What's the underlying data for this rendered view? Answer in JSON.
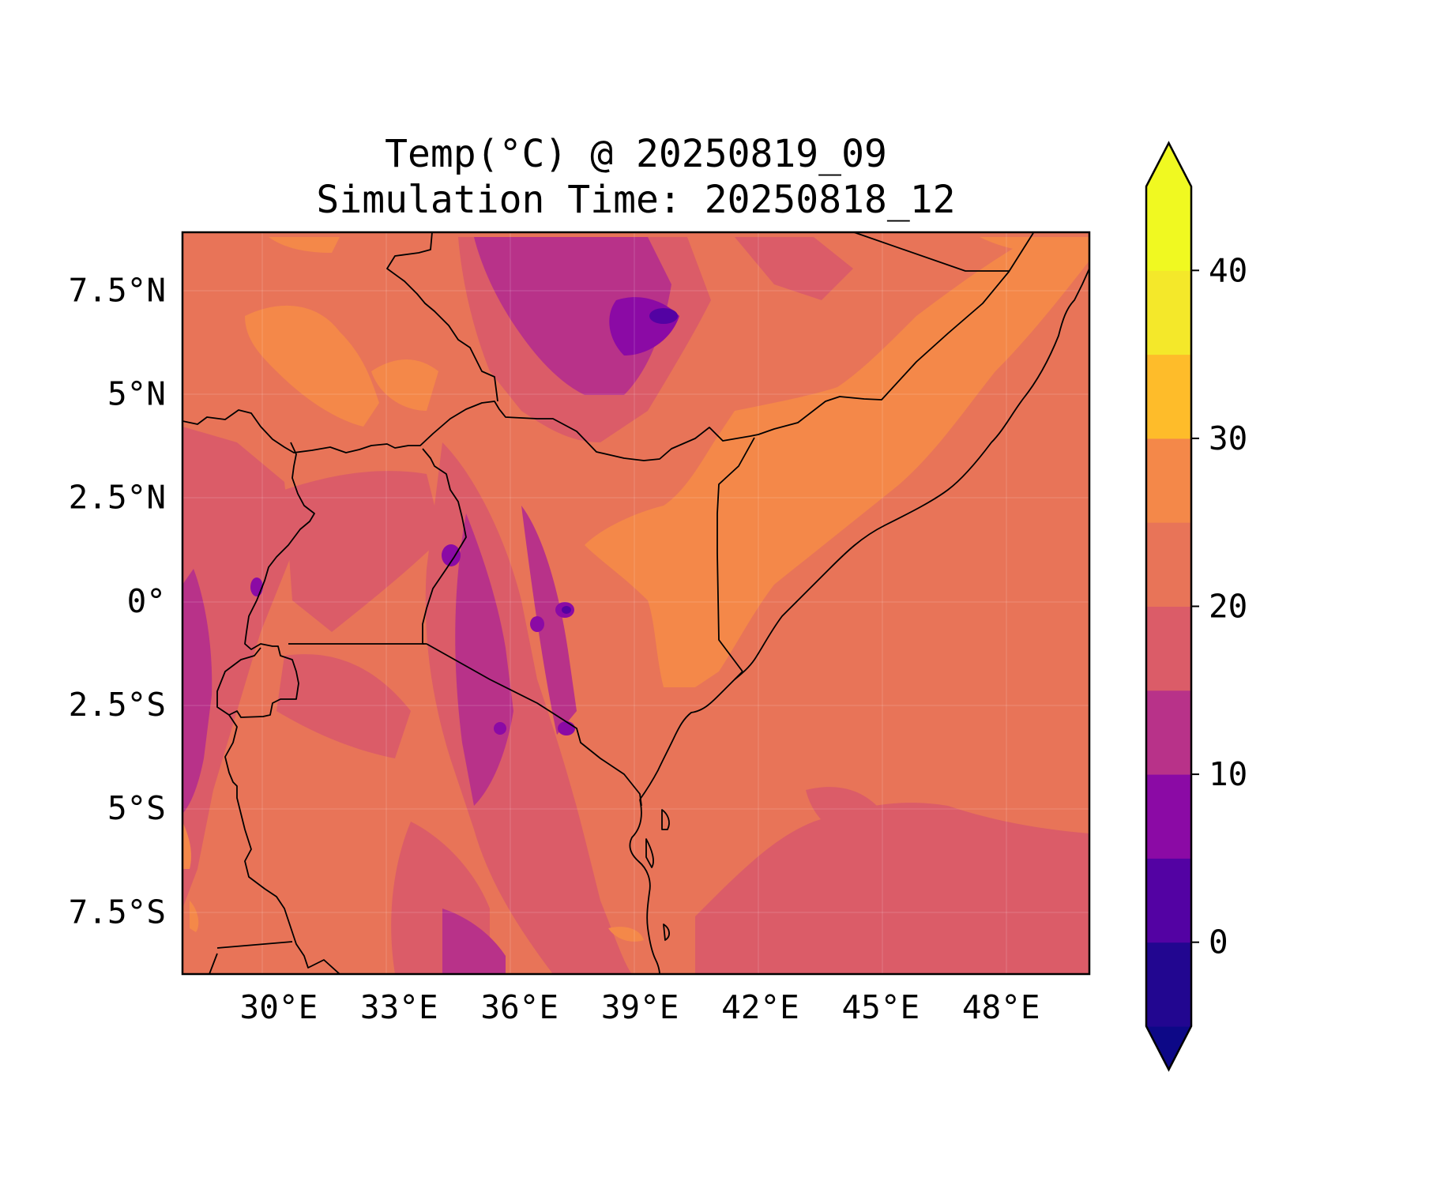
{
  "title_line1": "Temp(°C) @ 20250819_09",
  "title_line2": "Simulation Time: 20250818_12",
  "map": {
    "lon_range": [
      27.6,
      50.2
    ],
    "lat_range": [
      -9.0,
      8.9
    ],
    "xticks": [
      {
        "lon": 30,
        "label": "30°E"
      },
      {
        "lon": 33,
        "label": "33°E"
      },
      {
        "lon": 36,
        "label": "36°E"
      },
      {
        "lon": 39,
        "label": "39°E"
      },
      {
        "lon": 42,
        "label": "42°E"
      },
      {
        "lon": 45,
        "label": "45°E"
      },
      {
        "lon": 48,
        "label": "48°E"
      }
    ],
    "yticks": [
      {
        "lat": 7.5,
        "label": "7.5°N"
      },
      {
        "lat": 5,
        "label": "5°N"
      },
      {
        "lat": 2.5,
        "label": "2.5°N"
      },
      {
        "lat": 0,
        "label": "0°"
      },
      {
        "lat": -2.5,
        "label": "2.5°S"
      },
      {
        "lat": -5,
        "label": "5°S"
      },
      {
        "lat": -7.5,
        "label": "7.5°S"
      }
    ],
    "gridlines": true,
    "background_color": "#e87458"
  },
  "colorbar": {
    "range": [
      -5,
      45
    ],
    "extend": "both",
    "boundaries": [
      -5,
      0,
      5,
      10,
      15,
      20,
      25,
      30,
      35,
      40,
      45
    ],
    "colors": [
      "#220690",
      "#5302a3",
      "#8b0aa5",
      "#b83289",
      "#db5c68",
      "#e87458",
      "#f48849",
      "#febc2a",
      "#f4e82a",
      "#f0f921"
    ],
    "under_color": "#0d0887",
    "over_color": "#f0f921",
    "ticks": [
      {
        "value": 0,
        "label": "0"
      },
      {
        "value": 10,
        "label": "10"
      },
      {
        "value": 20,
        "label": "20"
      },
      {
        "value": 30,
        "label": "30"
      },
      {
        "value": 40,
        "label": "40"
      }
    ]
  }
}
